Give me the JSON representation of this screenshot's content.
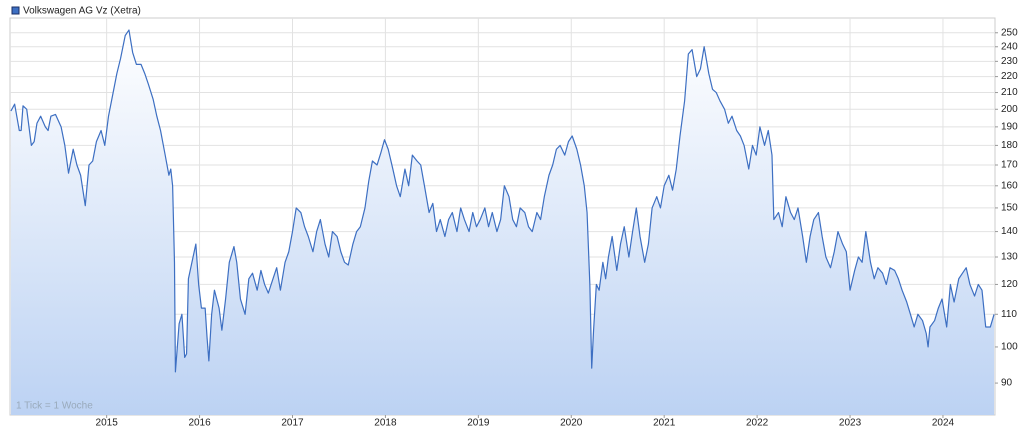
{
  "chart_data": {
    "type": "line",
    "series": [
      {
        "name": "Volkswagen AG Vz (Xetra)",
        "color": "#3d6fc2",
        "x": [
          2013.97,
          2014.01,
          2014.06,
          2014.08,
          2014.1,
          2014.14,
          2014.19,
          2014.22,
          2014.25,
          2014.29,
          2014.34,
          2014.37,
          2014.4,
          2014.45,
          2014.51,
          2014.55,
          2014.59,
          2014.64,
          2014.68,
          2014.72,
          2014.77,
          2014.81,
          2014.85,
          2014.89,
          2014.94,
          2014.98,
          2015.02,
          2015.07,
          2015.11,
          2015.15,
          2015.2,
          2015.24,
          2015.28,
          2015.32,
          2015.37,
          2015.41,
          2015.45,
          2015.5,
          2015.54,
          2015.58,
          2015.63,
          2015.67,
          2015.69,
          2015.71,
          2015.73,
          2015.74,
          2015.78,
          2015.81,
          2015.84,
          2015.86,
          2015.88,
          2015.93,
          2015.96,
          2015.99,
          2016.02,
          2016.06,
          2016.08,
          2016.1,
          2016.13,
          2016.16,
          2016.21,
          2016.24,
          2016.28,
          2016.32,
          2016.37,
          2016.4,
          2016.44,
          2016.49,
          2016.53,
          2016.57,
          2016.62,
          2016.66,
          2016.7,
          2016.74,
          2016.79,
          2016.83,
          2016.87,
          2016.92,
          2016.96,
          2017.0,
          2017.04,
          2017.09,
          2017.13,
          2017.17,
          2017.22,
          2017.26,
          2017.3,
          2017.35,
          2017.39,
          2017.43,
          2017.48,
          2017.52,
          2017.56,
          2017.6,
          2017.65,
          2017.69,
          2017.73,
          2017.78,
          2017.82,
          2017.86,
          2017.91,
          2017.95,
          2017.99,
          2018.03,
          2018.08,
          2018.12,
          2018.16,
          2018.21,
          2018.25,
          2018.29,
          2018.34,
          2018.38,
          2018.42,
          2018.47,
          2018.51,
          2018.55,
          2018.59,
          2018.64,
          2018.68,
          2018.72,
          2018.77,
          2018.81,
          2018.85,
          2018.9,
          2018.94,
          2018.98,
          2019.02,
          2019.07,
          2019.11,
          2019.15,
          2019.2,
          2019.24,
          2019.28,
          2019.33,
          2019.37,
          2019.41,
          2019.45,
          2019.5,
          2019.54,
          2019.58,
          2019.63,
          2019.67,
          2019.71,
          2019.76,
          2019.8,
          2019.84,
          2019.88,
          2019.93,
          2019.97,
          2020.01,
          2020.06,
          2020.1,
          2020.14,
          2020.17,
          2020.2,
          2020.22,
          2020.24,
          2020.27,
          2020.3,
          2020.34,
          2020.37,
          2020.4,
          2020.44,
          2020.49,
          2020.53,
          2020.57,
          2020.62,
          2020.66,
          2020.7,
          2020.74,
          2020.79,
          2020.83,
          2020.87,
          2020.92,
          2020.96,
          2021.0,
          2021.05,
          2021.09,
          2021.13,
          2021.17,
          2021.22,
          2021.26,
          2021.3,
          2021.35,
          2021.39,
          2021.43,
          2021.48,
          2021.52,
          2021.56,
          2021.6,
          2021.65,
          2021.69,
          2021.73,
          2021.78,
          2021.82,
          2021.86,
          2021.91,
          2021.95,
          2021.99,
          2022.03,
          2022.08,
          2022.12,
          2022.16,
          2022.18,
          2022.23,
          2022.27,
          2022.31,
          2022.36,
          2022.4,
          2022.44,
          2022.49,
          2022.53,
          2022.57,
          2022.61,
          2022.66,
          2022.7,
          2022.74,
          2022.79,
          2022.83,
          2022.87,
          2022.92,
          2022.96,
          2023.0,
          2023.05,
          2023.09,
          2023.13,
          2023.17,
          2023.22,
          2023.26,
          2023.3,
          2023.35,
          2023.39,
          2023.43,
          2023.48,
          2023.52,
          2023.56,
          2023.61,
          2023.65,
          2023.69,
          2023.73,
          2023.78,
          2023.82,
          2023.84,
          2023.86,
          2023.91,
          2023.95,
          2023.99,
          2024.04,
          2024.08,
          2024.12,
          2024.17,
          2024.21,
          2024.25,
          2024.29,
          2024.34,
          2024.38,
          2024.42,
          2024.46,
          2024.51,
          2024.55
        ],
        "values": [
          199,
          203,
          188,
          188,
          202,
          200,
          180,
          182,
          192,
          196,
          190,
          188,
          196,
          197,
          190,
          180,
          166,
          178,
          170,
          165,
          151,
          170,
          172,
          182,
          188,
          180,
          196,
          210,
          222,
          232,
          248,
          252,
          236,
          228,
          228,
          222,
          215,
          206,
          196,
          188,
          175,
          165,
          168,
          160,
          128,
          93,
          107,
          110,
          97,
          98,
          122,
          130,
          135,
          120,
          112,
          112,
          103,
          96,
          110,
          118,
          112,
          105,
          115,
          128,
          134,
          128,
          115,
          110,
          122,
          124,
          118,
          125,
          120,
          117,
          122,
          126,
          118,
          128,
          132,
          140,
          150,
          148,
          142,
          138,
          132,
          140,
          145,
          135,
          130,
          140,
          138,
          132,
          128,
          127,
          135,
          140,
          142,
          150,
          162,
          172,
          170,
          176,
          183,
          178,
          168,
          160,
          155,
          168,
          160,
          175,
          172,
          170,
          160,
          148,
          152,
          140,
          145,
          138,
          145,
          148,
          140,
          150,
          145,
          140,
          148,
          142,
          145,
          150,
          142,
          148,
          140,
          145,
          160,
          155,
          145,
          142,
          150,
          148,
          142,
          140,
          148,
          145,
          155,
          165,
          170,
          178,
          180,
          175,
          182,
          185,
          178,
          170,
          160,
          148,
          120,
          94,
          105,
          120,
          118,
          128,
          122,
          130,
          138,
          125,
          135,
          142,
          130,
          140,
          150,
          138,
          128,
          135,
          150,
          155,
          150,
          160,
          165,
          158,
          168,
          185,
          205,
          235,
          238,
          220,
          225,
          240,
          222,
          212,
          210,
          205,
          200,
          192,
          196,
          188,
          185,
          180,
          168,
          180,
          175,
          190,
          180,
          188,
          175,
          145,
          148,
          142,
          155,
          148,
          145,
          150,
          138,
          128,
          138,
          145,
          148,
          138,
          130,
          126,
          132,
          140,
          135,
          132,
          118,
          125,
          130,
          128,
          140,
          128,
          122,
          126,
          124,
          120,
          126,
          125,
          122,
          118,
          114,
          110,
          106,
          110,
          108,
          104,
          100,
          106,
          108,
          112,
          115,
          106,
          120,
          114,
          122,
          124,
          126,
          120,
          116,
          120,
          118,
          106,
          106,
          110
        ]
      }
    ],
    "xlim": [
      2013.96,
      2024.56
    ],
    "xticks": [
      2015,
      2016,
      2017,
      2018,
      2019,
      2020,
      2021,
      2022,
      2023,
      2024
    ],
    "ylim": [
      82,
      261
    ],
    "yticks": [
      90,
      100,
      110,
      120,
      130,
      140,
      150,
      160,
      170,
      180,
      190,
      200,
      210,
      220,
      230,
      240,
      250
    ],
    "yscale": "log",
    "grid": true,
    "annotation": "1 Tick = 1 Woche"
  }
}
